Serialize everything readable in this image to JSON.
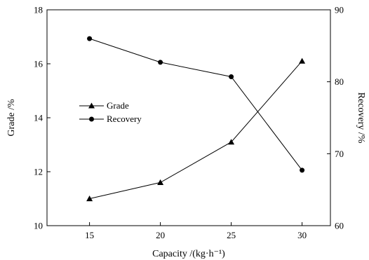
{
  "chart_data": {
    "type": "line",
    "title": "",
    "xlabel": "Capacity /(kg·h⁻¹)",
    "ylabel_left": "Grade /%",
    "ylabel_right": "Recovery /%",
    "x": [
      15,
      20,
      25,
      30
    ],
    "xlim": [
      12,
      32
    ],
    "xticks": [
      15,
      20,
      25,
      30
    ],
    "ylim_left": [
      10,
      18
    ],
    "yticks_left": [
      10,
      12,
      14,
      16,
      18
    ],
    "ylim_right": [
      60,
      90
    ],
    "yticks_right": [
      60,
      70,
      80,
      90
    ],
    "grid": false,
    "legend_position": "center-left",
    "series": [
      {
        "name": "Grade",
        "axis": "left",
        "marker": "triangle",
        "color": "#000000",
        "values": [
          11.0,
          11.6,
          13.1,
          16.1
        ]
      },
      {
        "name": "Recovery",
        "axis": "right",
        "marker": "circle",
        "color": "#000000",
        "values": [
          86.0,
          82.7,
          80.7,
          67.7
        ]
      }
    ]
  }
}
